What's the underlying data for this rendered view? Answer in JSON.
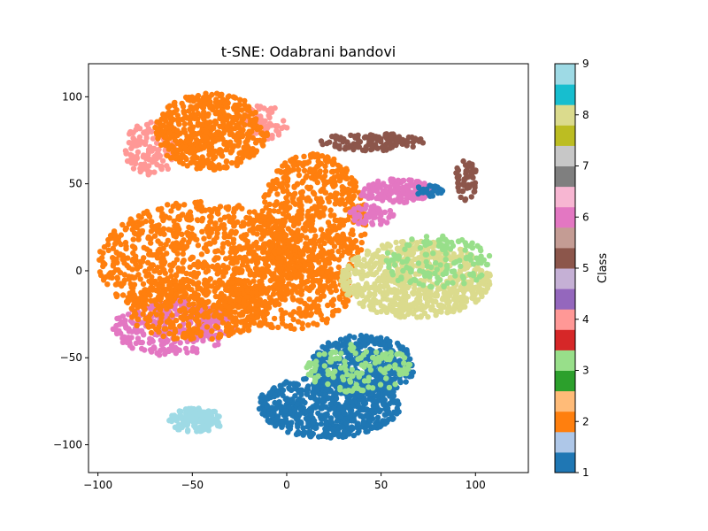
{
  "chart_data": {
    "type": "scatter",
    "title": "t-SNE: Odabrani bandovi",
    "xlabel": "",
    "ylabel": "",
    "xlim": [
      -105,
      128
    ],
    "ylim": [
      -116,
      119
    ],
    "x_ticks": [
      -100,
      -50,
      0,
      50,
      100
    ],
    "y_ticks": [
      -100,
      -50,
      0,
      50,
      100
    ],
    "x_tick_labels": [
      "−100",
      "−50",
      "0",
      "50",
      "100"
    ],
    "y_tick_labels": [
      "−100",
      "−50",
      "0",
      "50",
      "100"
    ],
    "grid": false,
    "colorbar": {
      "label": "Class",
      "range": [
        1,
        9
      ],
      "ticks": [
        1,
        2,
        3,
        4,
        5,
        6,
        7,
        8,
        9
      ],
      "tick_labels": [
        "1",
        "2",
        "3",
        "4",
        "5",
        "6",
        "7",
        "8",
        "9"
      ],
      "colors": [
        "#1f77b4",
        "#aec7e8",
        "#ff7f0e",
        "#ffbb78",
        "#2ca02c",
        "#98df8a",
        "#d62728",
        "#ff9896",
        "#9467bd",
        "#c5b0d5",
        "#8c564b",
        "#c49c94",
        "#e377c2",
        "#f7b6d2",
        "#7f7f7f",
        "#c7c7c7",
        "#bcbd22",
        "#dbdb8d",
        "#17becf",
        "#9edae5"
      ]
    },
    "class_colors": {
      "1": "#1f77b4",
      "2": "#ff7f0e",
      "3": "#98df8a",
      "4": "#ff9896",
      "5": "#8c564b",
      "6": "#e377c2",
      "8": "#dbdb8d",
      "9": "#9edae5"
    },
    "clusters": [
      {
        "class": 4,
        "cx": -72,
        "cy": 70,
        "rx": 14,
        "ry": 16,
        "n": 130
      },
      {
        "class": 4,
        "cx": -12,
        "cy": 85,
        "rx": 14,
        "ry": 10,
        "n": 60
      },
      {
        "class": 2,
        "cx": -40,
        "cy": 80,
        "rx": 30,
        "ry": 22,
        "n": 520
      },
      {
        "class": 2,
        "cx": 14,
        "cy": 28,
        "rx": 28,
        "ry": 40,
        "n": 650
      },
      {
        "class": 2,
        "cx": -45,
        "cy": 5,
        "rx": 55,
        "ry": 35,
        "n": 900
      },
      {
        "class": 6,
        "cx": -60,
        "cy": -33,
        "rx": 32,
        "ry": 16,
        "n": 280
      },
      {
        "class": 2,
        "cx": -48,
        "cy": -22,
        "rx": 38,
        "ry": 18,
        "n": 320
      },
      {
        "class": 2,
        "cx": 0,
        "cy": -10,
        "rx": 35,
        "ry": 25,
        "n": 350
      },
      {
        "class": 5,
        "cx": 45,
        "cy": 74,
        "rx": 28,
        "ry": 5,
        "n": 120
      },
      {
        "class": 5,
        "cx": 95,
        "cy": 52,
        "rx": 6,
        "ry": 12,
        "n": 50
      },
      {
        "class": 6,
        "cx": 58,
        "cy": 46,
        "rx": 20,
        "ry": 7,
        "n": 150
      },
      {
        "class": 6,
        "cx": 45,
        "cy": 32,
        "rx": 12,
        "ry": 6,
        "n": 60
      },
      {
        "class": 1,
        "cx": 75,
        "cy": 46,
        "rx": 8,
        "ry": 4,
        "n": 25
      },
      {
        "class": 8,
        "cx": 68,
        "cy": -5,
        "rx": 40,
        "ry": 22,
        "n": 700
      },
      {
        "class": 3,
        "cx": 80,
        "cy": 5,
        "rx": 30,
        "ry": 15,
        "n": 140
      },
      {
        "class": 1,
        "cx": 22,
        "cy": -78,
        "rx": 38,
        "ry": 18,
        "n": 650
      },
      {
        "class": 1,
        "cx": 40,
        "cy": -55,
        "rx": 28,
        "ry": 18,
        "n": 450
      },
      {
        "class": 3,
        "cx": 38,
        "cy": -56,
        "rx": 28,
        "ry": 14,
        "n": 130
      },
      {
        "class": 9,
        "cx": -48,
        "cy": -86,
        "rx": 15,
        "ry": 7,
        "n": 150
      }
    ]
  }
}
